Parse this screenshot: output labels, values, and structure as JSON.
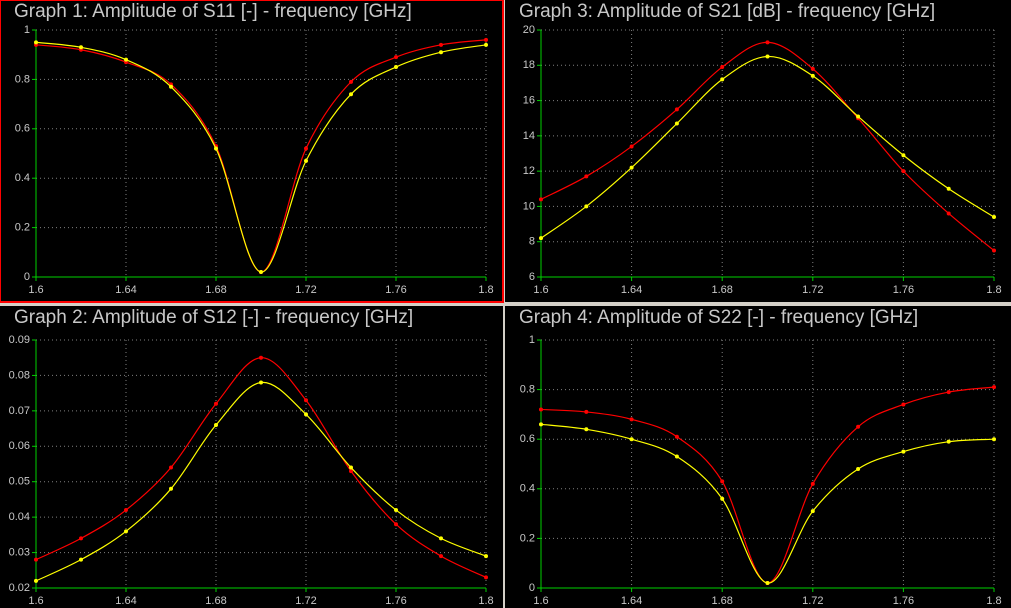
{
  "chart_data": [
    {
      "type": "line",
      "title": "Graph 1: Amplitude of S11 [-] - frequency [GHz]",
      "x": [
        1.6,
        1.62,
        1.64,
        1.66,
        1.68,
        1.7,
        1.72,
        1.74,
        1.76,
        1.78,
        1.8
      ],
      "series": [
        {
          "color": "#ff0000",
          "values": [
            0.94,
            0.92,
            0.87,
            0.78,
            0.53,
            0.02,
            0.52,
            0.79,
            0.89,
            0.94,
            0.96
          ]
        },
        {
          "color": "#ffff00",
          "values": [
            0.95,
            0.93,
            0.88,
            0.77,
            0.52,
            0.02,
            0.47,
            0.74,
            0.85,
            0.91,
            0.94
          ]
        }
      ],
      "xlim": [
        1.6,
        1.8
      ],
      "xticks": [
        1.6,
        1.64,
        1.68,
        1.72,
        1.76,
        1.8
      ],
      "ylim": [
        0,
        1
      ],
      "yticks": [
        0,
        0.2,
        0.4,
        0.6,
        0.8,
        1
      ],
      "grid": true,
      "selected": true
    },
    {
      "type": "line",
      "title": "Graph 3: Amplitude of S21 [dB] - frequency [GHz]",
      "x": [
        1.6,
        1.62,
        1.64,
        1.66,
        1.68,
        1.7,
        1.72,
        1.74,
        1.76,
        1.78,
        1.8
      ],
      "series": [
        {
          "color": "#ff0000",
          "values": [
            10.4,
            11.7,
            13.4,
            15.5,
            17.9,
            19.3,
            17.8,
            15.0,
            12.0,
            9.6,
            7.5
          ]
        },
        {
          "color": "#ffff00",
          "values": [
            8.2,
            10.0,
            12.2,
            14.7,
            17.2,
            18.5,
            17.4,
            15.1,
            12.9,
            11.0,
            9.4
          ]
        }
      ],
      "xlim": [
        1.6,
        1.8
      ],
      "xticks": [
        1.6,
        1.64,
        1.68,
        1.72,
        1.76,
        1.8
      ],
      "ylim": [
        6,
        20
      ],
      "yticks": [
        6,
        8,
        10,
        12,
        14,
        16,
        18,
        20
      ],
      "grid": true,
      "selected": false
    },
    {
      "type": "line",
      "title": "Graph 2: Amplitude of S12 [-] - frequency [GHz]",
      "x": [
        1.6,
        1.62,
        1.64,
        1.66,
        1.68,
        1.7,
        1.72,
        1.74,
        1.76,
        1.78,
        1.8
      ],
      "series": [
        {
          "color": "#ff0000",
          "values": [
            0.028,
            0.034,
            0.042,
            0.054,
            0.072,
            0.085,
            0.073,
            0.053,
            0.038,
            0.029,
            0.023
          ]
        },
        {
          "color": "#ffff00",
          "values": [
            0.022,
            0.028,
            0.036,
            0.048,
            0.066,
            0.078,
            0.069,
            0.054,
            0.042,
            0.034,
            0.029
          ]
        }
      ],
      "xlim": [
        1.6,
        1.8
      ],
      "xticks": [
        1.6,
        1.64,
        1.68,
        1.72,
        1.76,
        1.8
      ],
      "ylim": [
        0.02,
        0.09
      ],
      "yticks": [
        0.02,
        0.03,
        0.04,
        0.05,
        0.06,
        0.07,
        0.08,
        0.09
      ],
      "grid": true,
      "selected": false
    },
    {
      "type": "line",
      "title": "Graph 4: Amplitude of S22 [-] - frequency [GHz]",
      "x": [
        1.6,
        1.62,
        1.64,
        1.66,
        1.68,
        1.7,
        1.72,
        1.74,
        1.76,
        1.78,
        1.8
      ],
      "series": [
        {
          "color": "#ff0000",
          "values": [
            0.72,
            0.71,
            0.68,
            0.61,
            0.43,
            0.02,
            0.42,
            0.65,
            0.74,
            0.79,
            0.81
          ]
        },
        {
          "color": "#ffff00",
          "values": [
            0.66,
            0.64,
            0.6,
            0.53,
            0.36,
            0.02,
            0.31,
            0.48,
            0.55,
            0.59,
            0.6
          ]
        }
      ],
      "xlim": [
        1.6,
        1.8
      ],
      "xticks": [
        1.6,
        1.64,
        1.68,
        1.72,
        1.76,
        1.8
      ],
      "ylim": [
        0,
        1
      ],
      "yticks": [
        0,
        0.2,
        0.4,
        0.6,
        0.8,
        1
      ],
      "grid": true,
      "selected": false
    }
  ]
}
